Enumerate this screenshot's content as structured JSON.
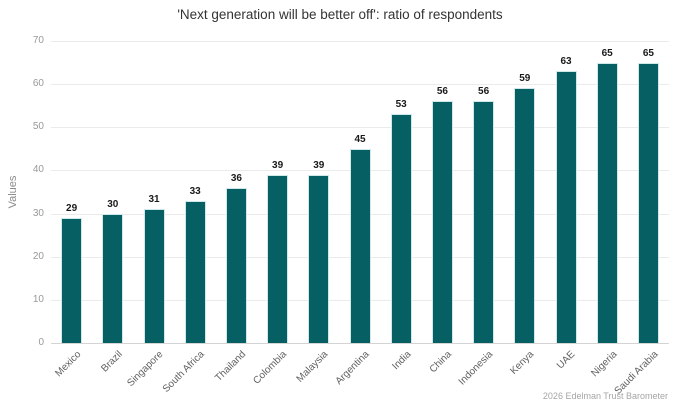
{
  "chart_data": {
    "type": "bar",
    "title": "'Next generation will be better off': ratio of respondents",
    "ylabel": "Values",
    "xlabel": "",
    "categories": [
      "Mexico",
      "Brazil",
      "Singapore",
      "South Africa",
      "Thailand",
      "Colombia",
      "Malaysia",
      "Argentina",
      "India",
      "China",
      "Indonesia",
      "Kenya",
      "UAE",
      "Nigeria",
      "Saudi Arabia"
    ],
    "values": [
      29,
      30,
      31,
      33,
      36,
      39,
      39,
      45,
      53,
      56,
      56,
      59,
      63,
      65,
      65
    ],
    "ylim": [
      0,
      70
    ],
    "yticks": [
      0,
      10,
      20,
      30,
      40,
      50,
      60,
      70
    ],
    "grid": "horizontal",
    "legend": "none",
    "bar_labels_shown": true,
    "source_note": "2026 Edelman Trust Barometer",
    "colors": {
      "bar": "#055f63",
      "bar_outline": "#cfe9ea",
      "grid": "#ebebeb",
      "title_text": "#333333",
      "tick_text": "#999999",
      "background": "#ffffff"
    }
  }
}
